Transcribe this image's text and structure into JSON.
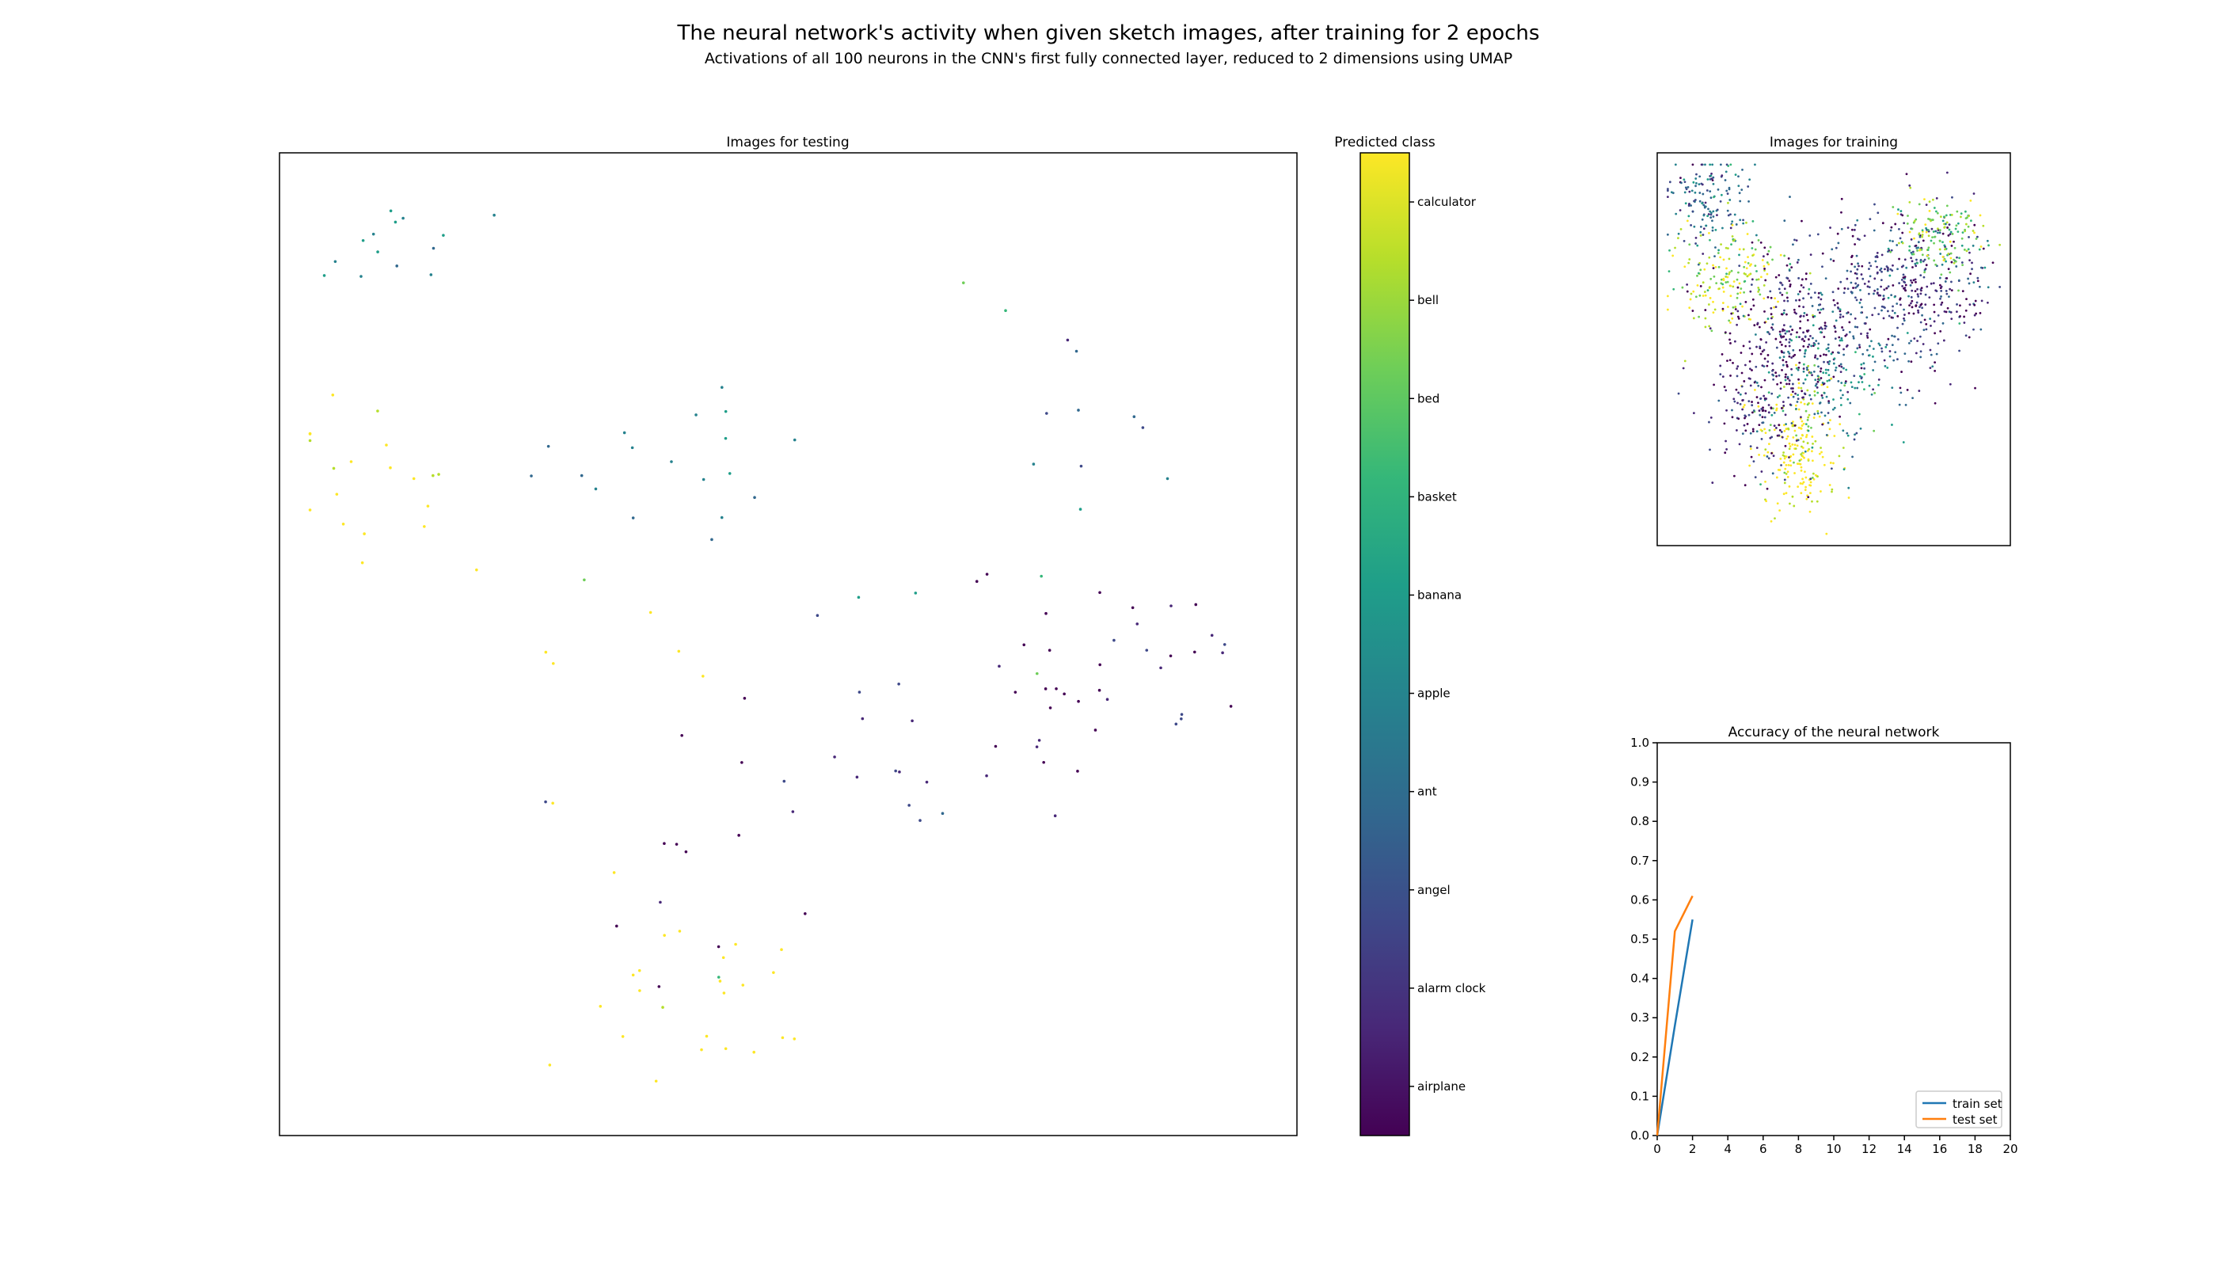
{
  "figure": {
    "title": "The neural network's activity when given sketch images, after training for 2 epochs",
    "subtitle": "Activations of all 100 neurons in the CNN's first fully connected layer, reduced to 2 dimensions using UMAP"
  },
  "chart_data": [
    {
      "type": "scatter",
      "title": "Images for testing",
      "axes_visible": false,
      "color_by": "predicted class",
      "classes": [
        "airplane",
        "alarm clock",
        "angel",
        "ant",
        "apple",
        "banana",
        "basket",
        "bed",
        "bell",
        "calculator"
      ],
      "points_per_class_approx": 25,
      "approximate_cluster_regions": {
        "yellow_classes": "left-middle and bottom-center",
        "dark_classes": "right side and lower center",
        "teal_classes": "top-left and scattered center"
      }
    },
    {
      "type": "colorbar",
      "title": "Predicted class",
      "colormap": "viridis",
      "tick_labels": [
        "airplane",
        "alarm clock",
        "angel",
        "ant",
        "apple",
        "banana",
        "basket",
        "bed",
        "bell",
        "calculator"
      ],
      "colors": [
        "#440154",
        "#482878",
        "#3e4989",
        "#31688e",
        "#26828e",
        "#1f9e89",
        "#35b779",
        "#6ece58",
        "#b5de2b",
        "#fde725"
      ]
    },
    {
      "type": "scatter",
      "title": "Images for training",
      "axes_visible": false,
      "color_by": "predicted class",
      "points_approx": 2000
    },
    {
      "type": "line",
      "title": "Accuracy of the neural network",
      "x": [
        0,
        1,
        2
      ],
      "series": [
        {
          "name": "train set",
          "values": [
            0.0,
            0.28,
            0.55
          ],
          "color": "#1f77b4"
        },
        {
          "name": "test set",
          "values": [
            0.0,
            0.52,
            0.61
          ],
          "color": "#ff7f0e"
        }
      ],
      "xlim": [
        0,
        20
      ],
      "ylim": [
        0,
        1
      ],
      "xticks": [
        "0",
        "2",
        "4",
        "6",
        "8",
        "10",
        "12",
        "14",
        "16",
        "18",
        "20"
      ],
      "yticks": [
        "0.0",
        "0.1",
        "0.2",
        "0.3",
        "0.4",
        "0.5",
        "0.6",
        "0.7",
        "0.8",
        "0.9",
        "1.0"
      ],
      "legend": "lower-right",
      "grid": false
    }
  ]
}
